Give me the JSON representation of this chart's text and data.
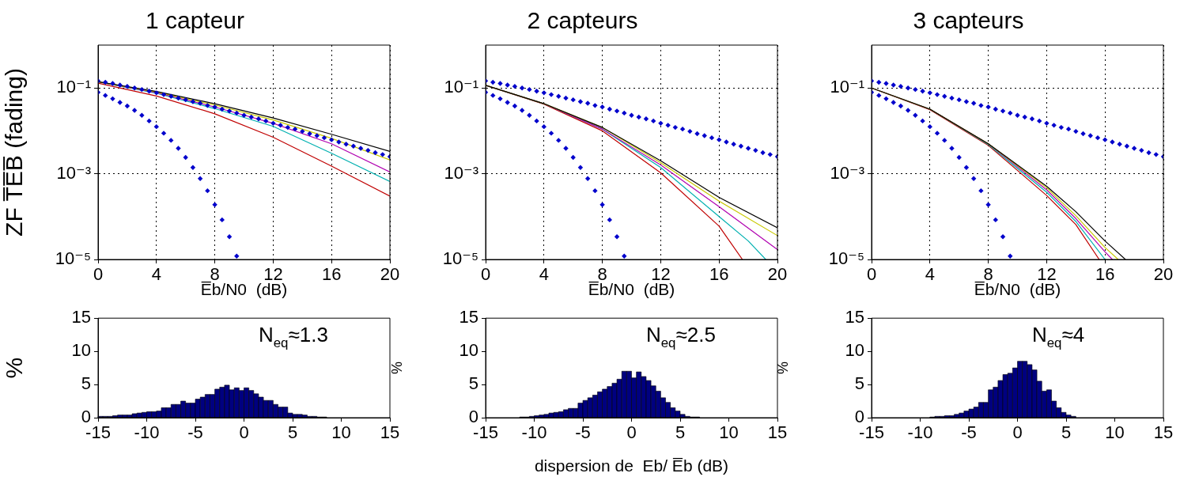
{
  "chart_data": [
    {
      "type": "line",
      "title": "1 capteur",
      "xlabel": "E̅b/N0  (dB)",
      "ylabel": "ZF T̅E̅B̅ (fading)",
      "log": true,
      "grid": true,
      "xlim": [
        0,
        20
      ],
      "xticks": [
        0,
        4,
        8,
        12,
        16,
        20
      ],
      "ylim": [
        1e-05,
        1
      ],
      "yticks": [
        {
          "value": 1e-05,
          "label": "10⁻⁵"
        },
        {
          "value": 0.001,
          "label": "10⁻³"
        },
        {
          "value": 0.1,
          "label": "10⁻¹"
        }
      ],
      "series": [
        {
          "type": "line",
          "color": "#000000",
          "x": [
            0,
            4,
            8,
            12,
            16,
            20
          ],
          "values": [
            0.14,
            0.083,
            0.043,
            0.02,
            0.0083,
            0.0033
          ]
        },
        {
          "type": "line",
          "color": "#c8c800",
          "x": [
            0,
            4,
            8,
            12,
            16,
            20
          ],
          "values": [
            0.14,
            0.08,
            0.04,
            0.018,
            0.0067,
            0.0021
          ]
        },
        {
          "type": "line",
          "color": "#b000b0",
          "x": [
            0,
            4,
            8,
            12,
            16,
            20
          ],
          "values": [
            0.14,
            0.078,
            0.036,
            0.015,
            0.005,
            0.0011
          ]
        },
        {
          "type": "line",
          "color": "#00b0b0",
          "x": [
            0,
            4,
            8,
            12,
            16,
            20
          ],
          "values": [
            0.14,
            0.075,
            0.033,
            0.0127,
            0.003,
            0.00066
          ]
        },
        {
          "type": "line",
          "color": "#c00000",
          "x": [
            0,
            4,
            8,
            12,
            16,
            20
          ],
          "values": [
            0.13,
            0.065,
            0.025,
            0.0071,
            0.0015,
            0.0003
          ]
        },
        {
          "type": "scatter",
          "marker": "diamond",
          "color": "#0000cc",
          "x": [
            0,
            0.5,
            1,
            1.5,
            2,
            2.5,
            3,
            3.5,
            4,
            4.5,
            5,
            5.5,
            6,
            6.5,
            7,
            7.5,
            8,
            8.5,
            9,
            9.5,
            10,
            10.5,
            11,
            11.5,
            12,
            12.5,
            13,
            13.5,
            14,
            14.5,
            15,
            15.5,
            16,
            16.5,
            17,
            17.5,
            18,
            18.5,
            19,
            19.5,
            20
          ],
          "values": [
            0.146,
            0.136,
            0.127,
            0.117,
            0.109,
            0.1,
            0.092,
            0.084,
            0.077,
            0.07,
            0.064,
            0.058,
            0.053,
            0.048,
            0.044,
            0.039,
            0.036,
            0.032,
            0.029,
            0.026,
            0.023,
            0.021,
            0.019,
            0.017,
            0.015,
            0.0135,
            0.012,
            0.011,
            0.0097,
            0.0086,
            0.0077,
            0.0069,
            0.0062,
            0.0055,
            0.0049,
            0.0044,
            0.0039,
            0.0035,
            0.0031,
            0.0028,
            0.0025
          ]
        },
        {
          "type": "scatter",
          "marker": "diamond",
          "color": "#0000cc",
          "x": [
            0,
            0.5,
            1,
            1.5,
            2,
            2.5,
            3,
            3.5,
            4,
            4.5,
            5,
            5.5,
            6,
            6.5,
            7,
            7.5,
            8,
            8.5,
            9,
            9.5
          ],
          "values": [
            0.079,
            0.067,
            0.056,
            0.046,
            0.038,
            0.03,
            0.023,
            0.017,
            0.0125,
            0.0088,
            0.006,
            0.0039,
            0.0024,
            0.0014,
            0.00077,
            0.0004,
            0.00019,
            8.4e-05,
            3.4e-05,
            1.2e-05
          ]
        }
      ]
    },
    {
      "type": "line",
      "title": "2 capteurs",
      "xlabel": "E̅b/N0  (dB)",
      "log": true,
      "grid": true,
      "xlim": [
        0,
        20
      ],
      "xticks": [
        0,
        4,
        8,
        12,
        16,
        20
      ],
      "ylim": [
        1e-05,
        1
      ],
      "yticks": [
        {
          "value": 1e-05,
          "label": "10⁻⁵"
        },
        {
          "value": 0.001,
          "label": "10⁻³"
        },
        {
          "value": 0.1,
          "label": "10⁻¹"
        }
      ],
      "series": [
        {
          "type": "line",
          "color": "#000000",
          "x": [
            0,
            4,
            8,
            12,
            16,
            20
          ],
          "values": [
            0.115,
            0.043,
            0.012,
            0.002,
            0.00028,
            5.5e-05
          ]
        },
        {
          "type": "line",
          "color": "#c8c800",
          "x": [
            0,
            4,
            8,
            12,
            16,
            20
          ],
          "values": [
            0.115,
            0.043,
            0.012,
            0.0018,
            0.00023,
            3.6e-05
          ]
        },
        {
          "type": "line",
          "color": "#b000b0",
          "x": [
            0,
            4,
            8,
            12,
            16,
            20
          ],
          "values": [
            0.115,
            0.043,
            0.011,
            0.0016,
            0.00017,
            1.7e-05
          ]
        },
        {
          "type": "line",
          "color": "#00b0b0",
          "x": [
            0,
            4,
            8,
            12,
            16,
            18,
            19.2
          ],
          "values": [
            0.115,
            0.043,
            0.011,
            0.0014,
            0.0001,
            2.7e-05,
            1e-05
          ]
        },
        {
          "type": "line",
          "color": "#c00000",
          "x": [
            0,
            4,
            8,
            12,
            16,
            17.6
          ],
          "values": [
            0.115,
            0.042,
            0.01,
            0.00105,
            6e-05,
            1e-05
          ]
        },
        {
          "type": "scatter",
          "marker": "diamond",
          "color": "#0000cc",
          "x": [
            0,
            0.5,
            1,
            1.5,
            2,
            2.5,
            3,
            3.5,
            4,
            4.5,
            5,
            5.5,
            6,
            6.5,
            7,
            7.5,
            8,
            8.5,
            9,
            9.5,
            10,
            10.5,
            11,
            11.5,
            12,
            12.5,
            13,
            13.5,
            14,
            14.5,
            15,
            15.5,
            16,
            16.5,
            17,
            17.5,
            18,
            18.5,
            19,
            19.5,
            20
          ],
          "values": [
            0.146,
            0.136,
            0.127,
            0.117,
            0.109,
            0.1,
            0.092,
            0.084,
            0.077,
            0.07,
            0.064,
            0.058,
            0.053,
            0.048,
            0.044,
            0.039,
            0.036,
            0.032,
            0.029,
            0.026,
            0.023,
            0.021,
            0.019,
            0.017,
            0.015,
            0.0135,
            0.012,
            0.011,
            0.0097,
            0.0086,
            0.0077,
            0.0069,
            0.0062,
            0.0055,
            0.0049,
            0.0044,
            0.0039,
            0.0035,
            0.0031,
            0.0028,
            0.0025
          ]
        },
        {
          "type": "scatter",
          "marker": "diamond",
          "color": "#0000cc",
          "x": [
            0,
            0.5,
            1,
            1.5,
            2,
            2.5,
            3,
            3.5,
            4,
            4.5,
            5,
            5.5,
            6,
            6.5,
            7,
            7.5,
            8,
            8.5,
            9,
            9.5
          ],
          "values": [
            0.079,
            0.067,
            0.056,
            0.046,
            0.038,
            0.03,
            0.023,
            0.017,
            0.0125,
            0.0088,
            0.006,
            0.0039,
            0.0024,
            0.0014,
            0.00077,
            0.0004,
            0.00019,
            8.4e-05,
            3.4e-05,
            1.2e-05
          ]
        }
      ]
    },
    {
      "type": "line",
      "title": "3 capteurs",
      "xlabel": "E̅b/N0  (dB)",
      "log": true,
      "grid": true,
      "xlim": [
        0,
        20
      ],
      "xticks": [
        0,
        4,
        8,
        12,
        16,
        20
      ],
      "ylim": [
        1e-05,
        1
      ],
      "yticks": [
        {
          "value": 1e-05,
          "label": "10⁻⁵"
        },
        {
          "value": 0.001,
          "label": "10⁻³"
        },
        {
          "value": 0.1,
          "label": "10⁻¹"
        }
      ],
      "series": [
        {
          "type": "line",
          "color": "#000000",
          "x": [
            0,
            4,
            8,
            12,
            14,
            16,
            17.4
          ],
          "values": [
            0.1,
            0.032,
            0.005,
            0.00051,
            0.00013,
            2.7e-05,
            1e-05
          ]
        },
        {
          "type": "line",
          "color": "#c8c800",
          "x": [
            0,
            4,
            8,
            12,
            14,
            16,
            16.9
          ],
          "values": [
            0.1,
            0.032,
            0.005,
            0.00047,
            0.000105,
            1.9e-05,
            1e-05
          ]
        },
        {
          "type": "line",
          "color": "#b000b0",
          "x": [
            0,
            4,
            8,
            12,
            14,
            16,
            16.5
          ],
          "values": [
            0.1,
            0.032,
            0.005,
            0.00042,
            9e-05,
            1.5e-05,
            1e-05
          ]
        },
        {
          "type": "line",
          "color": "#00b0b0",
          "x": [
            0,
            4,
            8,
            12,
            14,
            16
          ],
          "values": [
            0.1,
            0.032,
            0.0048,
            0.00037,
            7.7e-05,
            1e-05
          ]
        },
        {
          "type": "line",
          "color": "#c00000",
          "x": [
            0,
            4,
            8,
            12,
            14,
            15.6
          ],
          "values": [
            0.1,
            0.031,
            0.0046,
            0.00031,
            6.5e-05,
            1e-05
          ]
        },
        {
          "type": "scatter",
          "marker": "diamond",
          "color": "#0000cc",
          "x": [
            0,
            0.5,
            1,
            1.5,
            2,
            2.5,
            3,
            3.5,
            4,
            4.5,
            5,
            5.5,
            6,
            6.5,
            7,
            7.5,
            8,
            8.5,
            9,
            9.5,
            10,
            10.5,
            11,
            11.5,
            12,
            12.5,
            13,
            13.5,
            14,
            14.5,
            15,
            15.5,
            16,
            16.5,
            17,
            17.5,
            18,
            18.5,
            19,
            19.5,
            20
          ],
          "values": [
            0.146,
            0.136,
            0.127,
            0.117,
            0.109,
            0.1,
            0.092,
            0.084,
            0.077,
            0.07,
            0.064,
            0.058,
            0.053,
            0.048,
            0.044,
            0.039,
            0.036,
            0.032,
            0.029,
            0.026,
            0.023,
            0.021,
            0.019,
            0.017,
            0.015,
            0.0135,
            0.012,
            0.011,
            0.0097,
            0.0086,
            0.0077,
            0.0069,
            0.0062,
            0.0055,
            0.0049,
            0.0044,
            0.0039,
            0.0035,
            0.0031,
            0.0028,
            0.0025
          ]
        },
        {
          "type": "scatter",
          "marker": "diamond",
          "color": "#0000cc",
          "x": [
            0,
            0.5,
            1,
            1.5,
            2,
            2.5,
            3,
            3.5,
            4,
            4.5,
            5,
            5.5,
            6,
            6.5,
            7,
            7.5,
            8,
            8.5,
            9,
            9.5
          ],
          "values": [
            0.079,
            0.067,
            0.056,
            0.046,
            0.038,
            0.03,
            0.023,
            0.017,
            0.0125,
            0.0088,
            0.006,
            0.0039,
            0.0024,
            0.0014,
            0.00077,
            0.0004,
            0.00019,
            8.4e-05,
            3.4e-05,
            1.2e-05
          ]
        }
      ]
    },
    {
      "type": "histogram",
      "ylabel": "%",
      "color": "#000080",
      "xlim": [
        -15,
        15
      ],
      "xticks": [
        -15,
        -10,
        -5,
        0,
        5,
        10,
        15
      ],
      "ylim": [
        0,
        15
      ],
      "yticks": [
        0,
        5,
        10,
        15
      ],
      "annotations": [
        "N$_{eq}$≈1.3"
      ],
      "bins": [
        -15,
        -14.5,
        -14,
        -13.5,
        -13,
        -12.5,
        -12,
        -11.5,
        -11,
        -10.5,
        -10,
        -9.5,
        -9,
        -8.5,
        -8,
        -7.5,
        -7,
        -6.5,
        -6,
        -5.5,
        -5,
        -4.5,
        -4,
        -3.5,
        -3,
        -2.5,
        -2,
        -1.5,
        -1,
        -0.5,
        0,
        0.5,
        1,
        1.5,
        2,
        2.5,
        3,
        3.5,
        4,
        4.5,
        5,
        5.5,
        6,
        6.5,
        7,
        7.5,
        8,
        8.5
      ],
      "values": [
        0.2,
        0.2,
        0.2,
        0.3,
        0.4,
        0.4,
        0.4,
        0.6,
        0.7,
        0.8,
        0.9,
        0.9,
        1.0,
        1.5,
        1.5,
        2.0,
        2.0,
        2.5,
        2.2,
        2.2,
        2.8,
        3.1,
        3.5,
        3.5,
        4.3,
        4.6,
        4.9,
        4.2,
        4.5,
        4.1,
        4.5,
        4.1,
        3.6,
        3.1,
        2.6,
        2.6,
        2.0,
        1.6,
        1.6,
        0.7,
        0.5,
        0.5,
        0.4,
        0.2,
        0.2,
        0.1,
        0.1
      ]
    },
    {
      "type": "histogram",
      "ylabel": "%",
      "xlabel": "dispersion de  Eb/ E̅b (dB)",
      "color": "#000080",
      "xlim": [
        -15,
        15
      ],
      "xticks": [
        -15,
        -10,
        -5,
        0,
        5,
        10,
        15
      ],
      "ylim": [
        0,
        15
      ],
      "yticks": [
        0,
        5,
        10,
        15
      ],
      "annotations": [
        "N$_{eq}$≈2.5"
      ],
      "bins": [
        -11.5,
        -11,
        -10.5,
        -10,
        -9.5,
        -9,
        -8.5,
        -8,
        -7.5,
        -7,
        -6.5,
        -6,
        -5.5,
        -5,
        -4.5,
        -4,
        -3.5,
        -3,
        -2.5,
        -2,
        -1.5,
        -1,
        -0.5,
        0,
        0.5,
        1,
        1.5,
        2,
        2.5,
        3,
        3.5,
        4,
        4.5,
        5,
        5.5,
        6,
        6.5,
        7
      ],
      "values": [
        0.1,
        0.1,
        0.2,
        0.3,
        0.4,
        0.5,
        0.7,
        0.8,
        0.9,
        1.2,
        1.4,
        1.4,
        2.2,
        2.6,
        3.0,
        3.4,
        3.9,
        4.3,
        4.7,
        5.2,
        5.8,
        7.0,
        7.0,
        6.0,
        6.9,
        6.2,
        5.6,
        4.8,
        4.0,
        3.0,
        2.3,
        1.5,
        1.0,
        0.5,
        0.2,
        0.1,
        0.1
      ]
    },
    {
      "type": "histogram",
      "ylabel": "%",
      "color": "#000080",
      "xlim": [
        -15,
        15
      ],
      "xticks": [
        -15,
        -10,
        -5,
        0,
        5,
        10,
        15
      ],
      "ylim": [
        0,
        15
      ],
      "yticks": [
        0,
        5,
        10,
        15
      ],
      "annotations": [
        "N$_{eq}$≈4"
      ],
      "bins": [
        -9,
        -8.5,
        -8,
        -7.5,
        -7,
        -6.5,
        -6,
        -5.5,
        -5,
        -4.5,
        -4,
        -3.5,
        -3,
        -2.5,
        -2,
        -1.5,
        -1,
        -0.5,
        0,
        0.5,
        1,
        1.5,
        2,
        2.5,
        3,
        3.5,
        4,
        4.5,
        5,
        5.5,
        6
      ],
      "values": [
        0.1,
        0.2,
        0.2,
        0.3,
        0.3,
        0.5,
        0.7,
        1.0,
        1.3,
        1.6,
        2.3,
        2.3,
        4.2,
        4.6,
        5.6,
        6.5,
        6.7,
        7.5,
        8.5,
        8.5,
        8.0,
        7.2,
        5.5,
        4.0,
        4.2,
        2.5,
        1.5,
        0.8,
        0.4,
        0.2
      ]
    }
  ]
}
